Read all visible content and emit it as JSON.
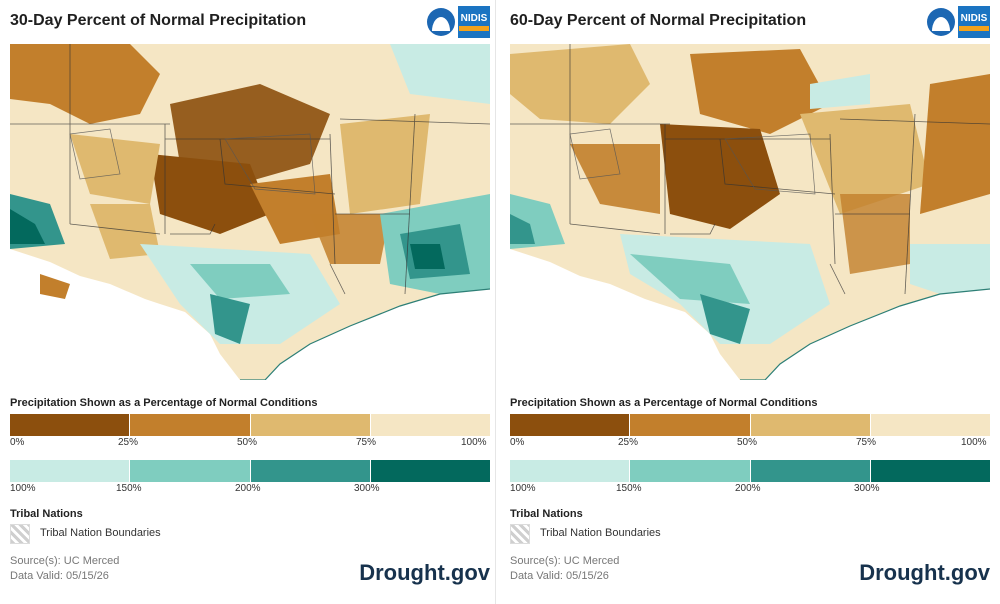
{
  "panels": [
    {
      "title": "30-Day Percent of Normal Precipitation",
      "legend_title": "Precipitation Shown as a Percentage of Normal Conditions",
      "tribal_title": "Tribal Nations",
      "tribal_label": "Tribal Nation Boundaries",
      "source": "Source(s): UC Merced",
      "valid": "Data Valid: 05/15/26",
      "brand": "Drought.gov"
    },
    {
      "title": "60-Day Percent of Normal Precipitation",
      "legend_title": "Precipitation Shown as a Percentage of Normal Conditions",
      "tribal_title": "Tribal Nations",
      "tribal_label": "Tribal Nation Boundaries",
      "source": "Source(s): UC Merced",
      "valid": "Data Valid: 05/15/26",
      "brand": "Drought.gov"
    }
  ],
  "logos": {
    "noaa": "NOAA",
    "nidis": "NIDIS"
  },
  "legend": {
    "dry_ticks": [
      "0%",
      "25%",
      "50%",
      "75%",
      "100%"
    ],
    "wet_ticks": [
      "100%",
      "150%",
      "200%",
      "300%"
    ],
    "dry_colors": [
      "#8c4f0d",
      "#c27f2c",
      "#dfb96f",
      "#f5e6c4"
    ],
    "wet_colors": [
      "#c8ebe4",
      "#7fcdbf",
      "#33958c",
      "#03695d"
    ]
  },
  "map_colors": {
    "very_dry": "#8c4f0d",
    "dry": "#c27f2c",
    "moderate": "#dfb96f",
    "near_normal": "#f5e6c4",
    "wet_light": "#c8ebe4",
    "wet": "#7fcdbf",
    "wet_dark": "#33958c",
    "very_wet": "#03695d"
  }
}
